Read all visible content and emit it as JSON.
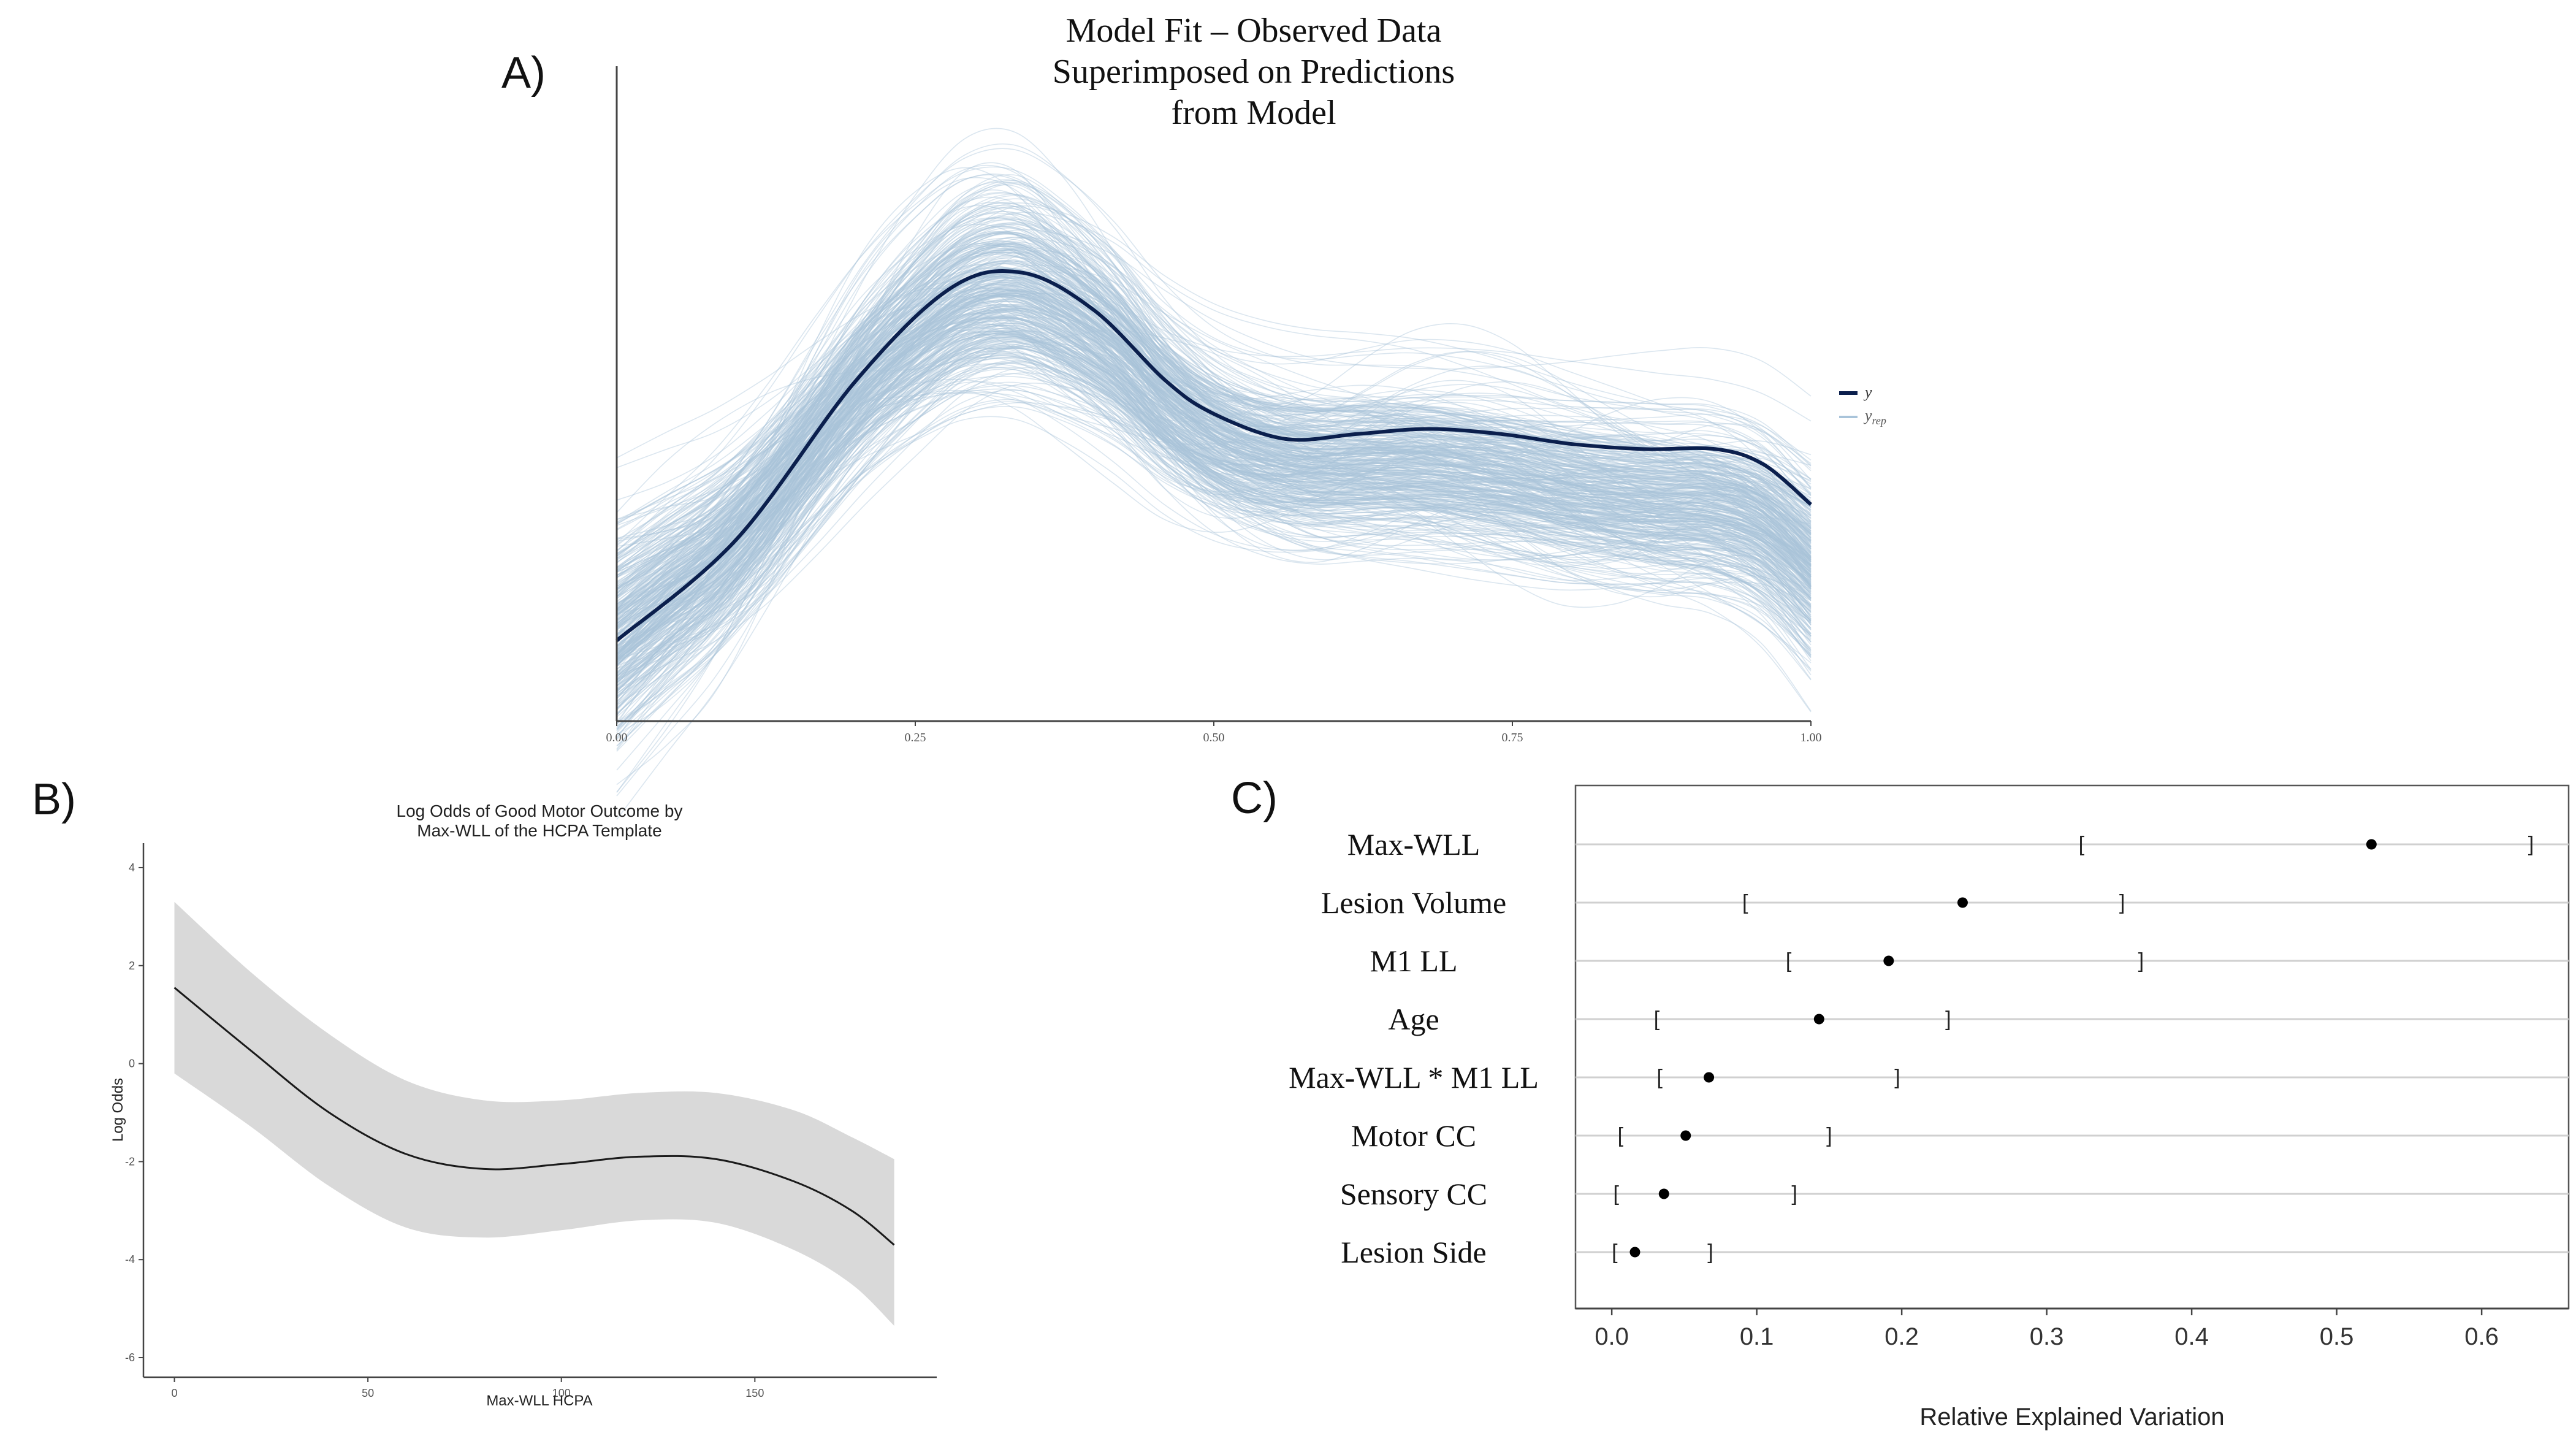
{
  "panel_labels": {
    "a": "A)",
    "b": "B)",
    "c": "C)"
  },
  "colors": {
    "observed": "#0b1f4d",
    "replicates": "#a9c4da",
    "band": "#d9d9d9",
    "line": "#1a1a1a",
    "axis": "#444444",
    "gridline": "#d0d0d0",
    "point": "#000000"
  },
  "chart_data": [
    {
      "id": "A",
      "type": "line",
      "title": [
        "Model Fit – Observed Data",
        "Superimposed on Predictions",
        "from Model"
      ],
      "xlim": [
        0,
        1
      ],
      "ylim": [
        0,
        2.6
      ],
      "x_ticks": [
        "0.00",
        "0.25",
        "0.50",
        "0.75",
        "1.00"
      ],
      "legend": {
        "position": "right",
        "observed_label": "y",
        "replicates_label": "y",
        "replicates_subscript": "rep"
      },
      "observed": {
        "x": [
          0.0,
          0.1,
          0.2,
          0.28,
          0.34,
          0.4,
          0.46,
          0.5,
          0.56,
          0.62,
          0.68,
          0.74,
          0.8,
          0.86,
          0.92,
          0.96,
          1.0
        ],
        "y": [
          0.32,
          0.72,
          1.35,
          1.72,
          1.78,
          1.63,
          1.35,
          1.22,
          1.12,
          1.14,
          1.16,
          1.14,
          1.1,
          1.08,
          1.08,
          1.02,
          0.86
        ]
      },
      "replicates": {
        "count": 400,
        "description": "posterior predictive draws"
      }
    },
    {
      "id": "B",
      "type": "area",
      "title": [
        "Log Odds of Good Motor Outcome by",
        "Max-WLL of the HCPA Template"
      ],
      "xlabel": "Max-WLL HCPA",
      "ylabel": "Log Odds",
      "xlim": [
        -8,
        197
      ],
      "ylim": [
        -6.4,
        4.5
      ],
      "x_ticks": [
        0,
        50,
        100,
        150
      ],
      "y_ticks": [
        4,
        2,
        0,
        -2,
        -4,
        -6
      ],
      "series": [
        {
          "name": "estimate",
          "x": [
            0,
            20,
            40,
            60,
            80,
            100,
            120,
            140,
            160,
            175,
            186
          ],
          "y": [
            1.55,
            0.25,
            -1.0,
            -1.85,
            -2.15,
            -2.05,
            -1.9,
            -1.95,
            -2.4,
            -3.0,
            -3.7
          ]
        },
        {
          "name": "lower",
          "x": [
            0,
            20,
            40,
            60,
            80,
            100,
            120,
            140,
            160,
            175,
            186
          ],
          "y": [
            -0.2,
            -1.3,
            -2.5,
            -3.35,
            -3.55,
            -3.4,
            -3.2,
            -3.25,
            -3.8,
            -4.5,
            -5.35
          ]
        },
        {
          "name": "upper",
          "x": [
            0,
            20,
            40,
            60,
            80,
            100,
            120,
            140,
            160,
            175,
            186
          ],
          "y": [
            3.3,
            1.85,
            0.6,
            -0.35,
            -0.75,
            -0.75,
            -0.6,
            -0.6,
            -0.95,
            -1.5,
            -1.95
          ]
        }
      ]
    },
    {
      "id": "C",
      "type": "scatter",
      "title": "",
      "xlabel": "Relative Explained Variation",
      "ylabel": "",
      "xlim": [
        -0.025,
        0.66
      ],
      "x_ticks": [
        "0.0",
        "0.1",
        "0.2",
        "0.3",
        "0.4",
        "0.5",
        "0.6"
      ],
      "bracket_left": "[",
      "bracket_right": "]",
      "categories": [
        "Max-WLL",
        "Lesion Volume",
        "M1 LL",
        "Age",
        "Max-WLL * M1 LL",
        "Motor CC",
        "Sensory CC",
        "Lesion Side"
      ],
      "estimates": [
        0.524,
        0.242,
        0.191,
        0.143,
        0.067,
        0.051,
        0.036,
        0.016
      ],
      "lower": [
        0.324,
        0.092,
        0.122,
        0.031,
        0.033,
        0.006,
        0.003,
        0.002
      ],
      "upper": [
        0.634,
        0.352,
        0.365,
        0.232,
        0.197,
        0.15,
        0.126,
        0.068
      ]
    }
  ]
}
